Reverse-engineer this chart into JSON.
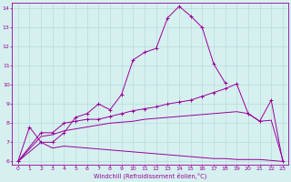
{
  "xlabel": "Windchill (Refroidissement éolien,°C)",
  "background_color": "#d6f0f0",
  "grid_color": "#b8dada",
  "line_color": "#990099",
  "xlim": [
    -0.5,
    23.5
  ],
  "ylim": [
    5.85,
    14.3
  ],
  "xticks": [
    0,
    1,
    2,
    3,
    4,
    5,
    6,
    7,
    8,
    9,
    10,
    11,
    12,
    13,
    14,
    15,
    16,
    17,
    18,
    19,
    20,
    21,
    22,
    23
  ],
  "yticks": [
    6,
    7,
    8,
    9,
    10,
    11,
    12,
    13,
    14
  ],
  "series": [
    {
      "x": [
        0,
        1,
        2,
        3,
        4,
        5,
        6,
        7,
        8,
        9,
        10,
        11,
        12,
        13,
        14,
        15,
        16,
        17,
        18
      ],
      "y": [
        6.0,
        7.8,
        7.0,
        7.0,
        7.5,
        8.3,
        8.5,
        9.0,
        8.7,
        9.5,
        11.3,
        11.7,
        11.9,
        13.5,
        14.1,
        13.6,
        13.0,
        11.1,
        10.1
      ],
      "marker": true
    },
    {
      "x": [
        0,
        2,
        3,
        4,
        5,
        6,
        7,
        8,
        9,
        10,
        11,
        12,
        13,
        14,
        15,
        16,
        17,
        18,
        19,
        20,
        21,
        22,
        23
      ],
      "y": [
        6.0,
        7.5,
        7.5,
        8.0,
        8.1,
        8.2,
        8.2,
        8.35,
        8.5,
        8.65,
        8.75,
        8.85,
        9.0,
        9.1,
        9.2,
        9.4,
        9.6,
        9.8,
        10.05,
        8.5,
        8.1,
        9.2,
        6.0
      ],
      "marker": true
    },
    {
      "x": [
        0,
        2,
        3,
        4,
        5,
        6,
        7,
        8,
        9,
        10,
        11,
        12,
        13,
        14,
        15,
        16,
        17,
        18,
        19,
        20,
        21,
        22,
        23
      ],
      "y": [
        6.0,
        7.3,
        7.4,
        7.6,
        7.7,
        7.8,
        7.9,
        8.0,
        8.05,
        8.1,
        8.2,
        8.25,
        8.3,
        8.35,
        8.4,
        8.45,
        8.5,
        8.55,
        8.6,
        8.5,
        8.1,
        8.15,
        6.1
      ],
      "marker": false
    },
    {
      "x": [
        0,
        2,
        3,
        4,
        5,
        6,
        7,
        8,
        9,
        10,
        11,
        12,
        13,
        14,
        15,
        16,
        17,
        18,
        19,
        20,
        21,
        22,
        23
      ],
      "y": [
        6.0,
        7.0,
        6.7,
        6.8,
        6.75,
        6.7,
        6.65,
        6.6,
        6.55,
        6.5,
        6.45,
        6.4,
        6.35,
        6.3,
        6.25,
        6.2,
        6.15,
        6.15,
        6.1,
        6.1,
        6.1,
        6.05,
        6.0
      ],
      "marker": false
    }
  ]
}
